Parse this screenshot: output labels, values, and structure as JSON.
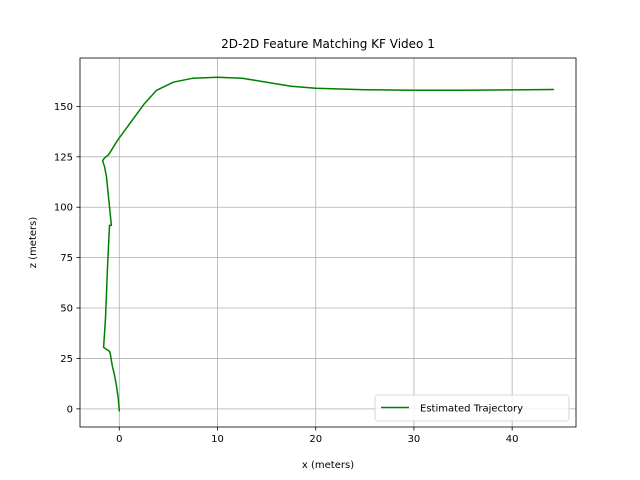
{
  "chart_data": {
    "type": "line",
    "title": "2D-2D Feature Matching KF Video 1",
    "xlabel": "x (meters)",
    "ylabel": "z (meters)",
    "xlim": [
      -4,
      46.5
    ],
    "ylim": [
      -9,
      174
    ],
    "xticks": [
      0,
      10,
      20,
      30,
      40
    ],
    "yticks": [
      0,
      25,
      50,
      75,
      100,
      125,
      150
    ],
    "grid": true,
    "legend_position": "lower-right",
    "series": [
      {
        "name": "Estimated Trajectory",
        "color": "#008000",
        "x": [
          0.0,
          -0.1,
          -0.3,
          -0.5,
          -0.7,
          -0.8,
          -0.9,
          -1.0,
          -1.3,
          -1.6,
          -1.4,
          -1.2,
          -1.0,
          -0.8,
          -1.1,
          -1.3,
          -1.5,
          -1.7,
          -1.5,
          -1.1,
          -0.2,
          1.0,
          2.5,
          3.8,
          5.5,
          7.5,
          10.0,
          12.5,
          15.0,
          17.5,
          20.0,
          25.0,
          30.0,
          35.0,
          40.0,
          44.2
        ],
        "y": [
          -1.0,
          5.0,
          12.0,
          17.0,
          21.0,
          24.0,
          27.0,
          28.5,
          29.5,
          30.5,
          45.0,
          70.0,
          91.0,
          91.0,
          105.0,
          115.0,
          120.0,
          123.0,
          124.5,
          126.0,
          133.0,
          141.0,
          151.0,
          158.0,
          162.0,
          164.0,
          164.5,
          164.0,
          162.0,
          160.0,
          159.0,
          158.3,
          158.0,
          158.0,
          158.2,
          158.4
        ]
      }
    ]
  }
}
